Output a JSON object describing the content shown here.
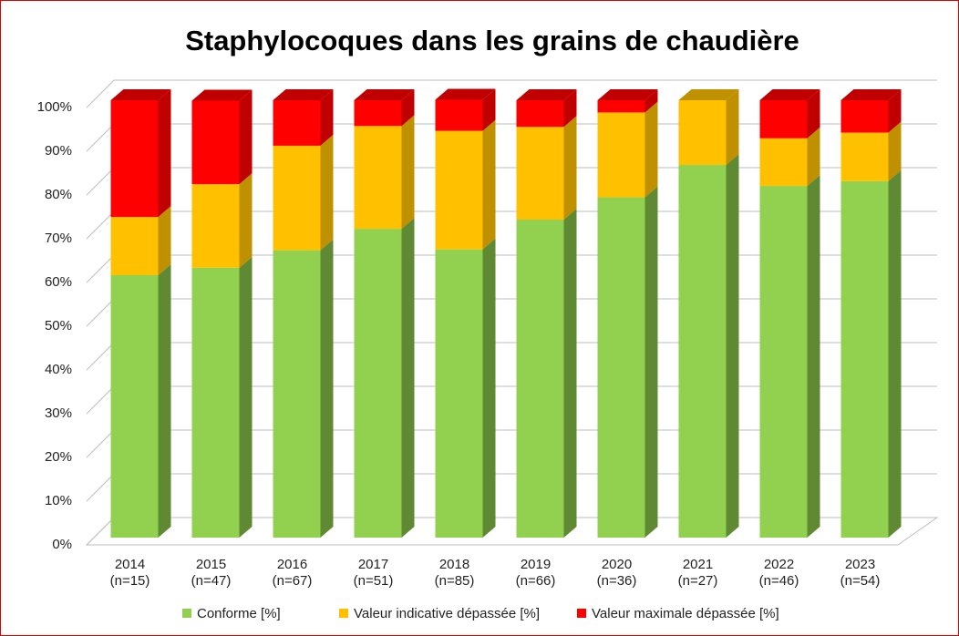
{
  "chart_data": {
    "type": "stacked_bar_3d",
    "title": "Staphylocoques dans les grains de chaudière",
    "categories": [
      "2014",
      "2015",
      "2016",
      "2017",
      "2018",
      "2019",
      "2020",
      "2021",
      "2022",
      "2023"
    ],
    "category_sublabels": [
      "(n=15)",
      "(n=47)",
      "(n=67)",
      "(n=51)",
      "(n=85)",
      "(n=66)",
      "(n=36)",
      "(n=27)",
      "(n=46)",
      "(n=54)"
    ],
    "series": [
      {
        "name": "Conforme [%]",
        "color": "#92d050",
        "side_color": "#5f8a33",
        "values": [
          60.0,
          61.7,
          65.7,
          70.6,
          65.9,
          72.7,
          77.8,
          85.2,
          80.4,
          81.5
        ]
      },
      {
        "name": "Valeur indicative dépassée [%]",
        "color": "#ffc000",
        "side_color": "#bf9000",
        "values": [
          13.3,
          19.1,
          23.9,
          23.5,
          27.1,
          21.2,
          19.4,
          14.8,
          10.9,
          11.1
        ]
      },
      {
        "name": "Valeur maximale dépassée [%]",
        "color": "#ff0000",
        "side_color": "#c00000",
        "values": [
          26.7,
          19.1,
          10.4,
          5.9,
          7.1,
          6.1,
          2.8,
          0,
          8.7,
          7.4
        ]
      }
    ],
    "ylim": [
      0,
      100
    ],
    "yticks": [
      {
        "value": 0,
        "label": "0%"
      },
      {
        "value": 10,
        "label": "10%"
      },
      {
        "value": 20,
        "label": "20%"
      },
      {
        "value": 30,
        "label": "30%"
      },
      {
        "value": 40,
        "label": "40%"
      },
      {
        "value": 50,
        "label": "50%"
      },
      {
        "value": 60,
        "label": "60%"
      },
      {
        "value": 70,
        "label": "70%"
      },
      {
        "value": 80,
        "label": "80%"
      },
      {
        "value": 90,
        "label": "90%"
      },
      {
        "value": 100,
        "label": "100%"
      }
    ],
    "grid": true,
    "legend": "bottom"
  }
}
